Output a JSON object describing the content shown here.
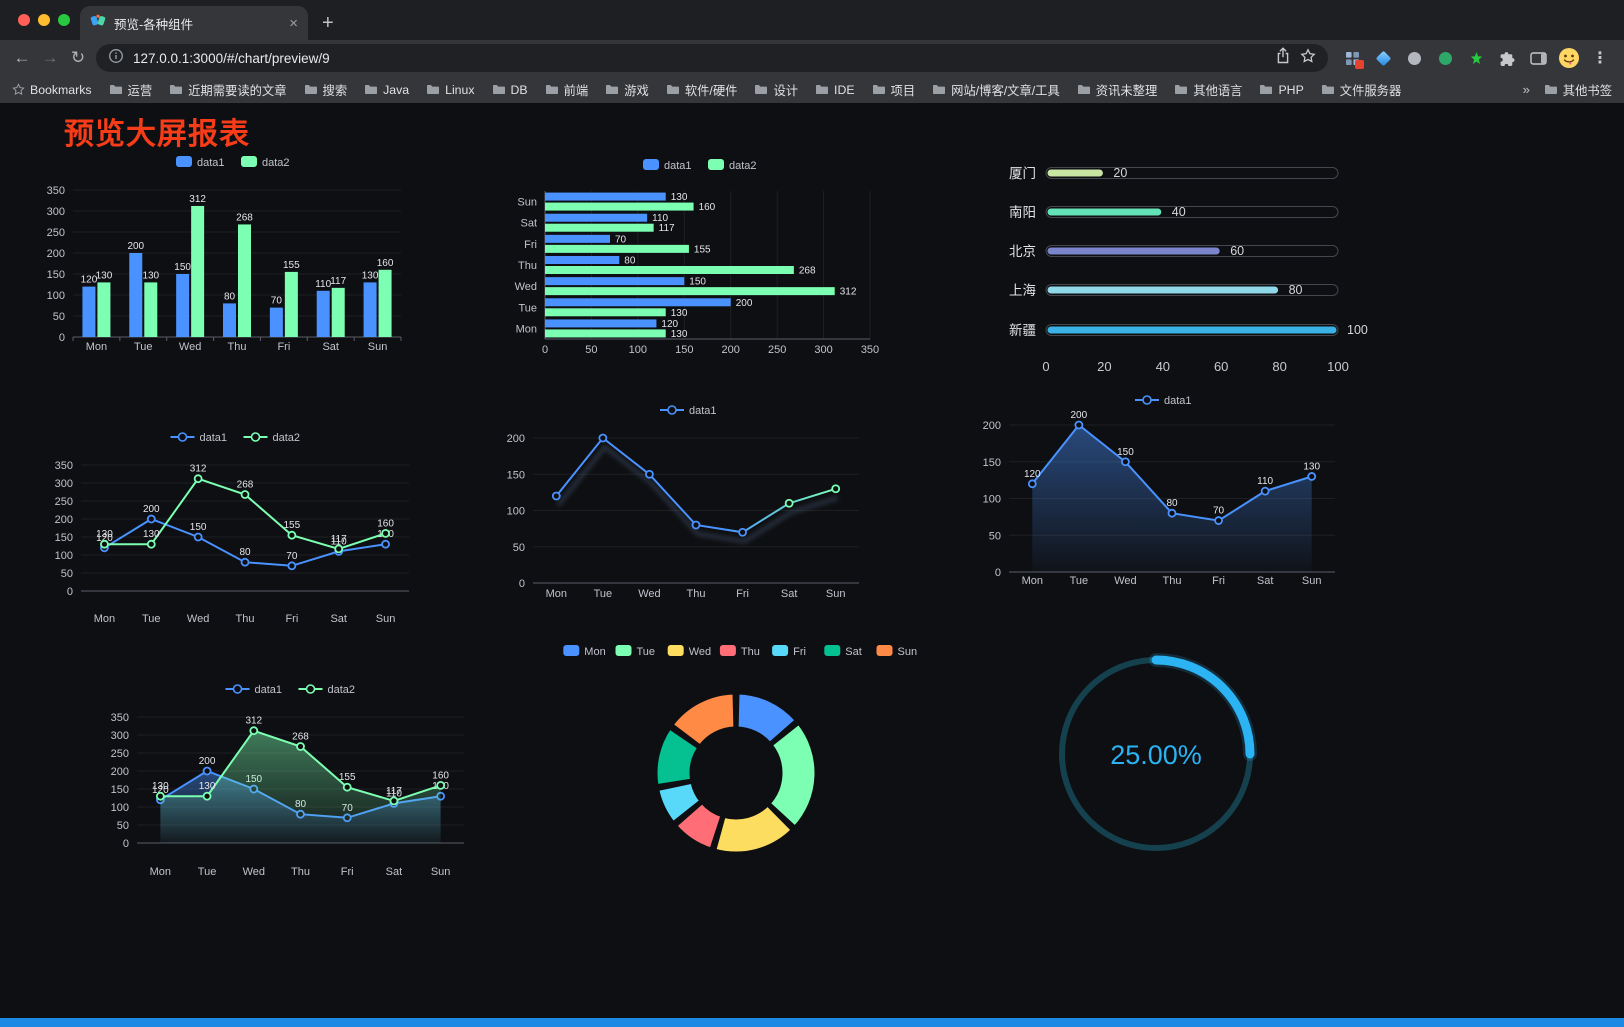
{
  "browser": {
    "tab": {
      "title": "预览-各种组件"
    },
    "icons": {
      "tab_close": "×",
      "new_tab": "+",
      "back": "←",
      "forward": "→",
      "reload": "↻",
      "menu": "⋮",
      "bookmarks_overflow": "»"
    },
    "toolbar": {
      "url": "127.0.0.1:3000/#/chart/preview/9"
    },
    "bookmarks_bar": {
      "root_label": "Bookmarks",
      "folders": [
        "运营",
        "近期需要读的文章",
        "搜索",
        "Java",
        "Linux",
        "DB",
        "前端",
        "游戏",
        "软件/硬件",
        "设计",
        "IDE",
        "项目",
        "网站/博客/文章/工具",
        "资讯未整理",
        "其他语言",
        "PHP",
        "文件服务器"
      ],
      "other_bookmarks": "其他书签"
    }
  },
  "page": {
    "title": "预览大屏报表",
    "title_color": "#f63c18",
    "background": "#0e0f12",
    "bottom_bar_color": "#1e88e5"
  },
  "chart_data": [
    {
      "id": "bar-grouped",
      "type": "bar",
      "categories": [
        "Mon",
        "Tue",
        "Wed",
        "Thu",
        "Fri",
        "Sat",
        "Sun"
      ],
      "series": [
        {
          "name": "data1",
          "color": "#4992ff",
          "values": [
            120,
            200,
            150,
            80,
            70,
            110,
            130
          ]
        },
        {
          "name": "data2",
          "color": "#7cffb2",
          "values": [
            130,
            130,
            312,
            268,
            155,
            117,
            160
          ]
        }
      ],
      "ylim": [
        0,
        350
      ],
      "yticks": [
        0,
        50,
        100,
        150,
        200,
        250,
        300,
        350
      ],
      "show_labels": true,
      "legend_position": "top",
      "grid": true
    },
    {
      "id": "bar-horizontal",
      "type": "bar-horizontal",
      "categories": [
        "Mon",
        "Tue",
        "Wed",
        "Thu",
        "Fri",
        "Sat",
        "Sun"
      ],
      "series": [
        {
          "name": "data1",
          "color": "#4992ff",
          "values": [
            120,
            200,
            150,
            80,
            70,
            110,
            130
          ]
        },
        {
          "name": "data2",
          "color": "#7cffb2",
          "values": [
            130,
            130,
            312,
            268,
            155,
            117,
            160
          ]
        }
      ],
      "xlim": [
        0,
        350
      ],
      "xticks": [
        0,
        50,
        100,
        150,
        200,
        250,
        300,
        350
      ],
      "show_labels": true,
      "legend_position": "top",
      "grid": true
    },
    {
      "id": "city-progress",
      "type": "progress",
      "max": 100,
      "xticks": [
        0,
        20,
        40,
        60,
        80,
        100
      ],
      "rows": [
        {
          "label": "厦门",
          "value": 20,
          "color": "#c8e6a2"
        },
        {
          "label": "南阳",
          "value": 40,
          "color": "#63e2b7"
        },
        {
          "label": "北京",
          "value": 60,
          "color": "#7a85cc"
        },
        {
          "label": "上海",
          "value": 80,
          "color": "#8fd8e8"
        },
        {
          "label": "新疆",
          "value": 100,
          "color": "#3ab2e6"
        }
      ]
    },
    {
      "id": "line-two",
      "type": "line",
      "categories": [
        "Mon",
        "Tue",
        "Wed",
        "Thu",
        "Fri",
        "Sat",
        "Sun"
      ],
      "series": [
        {
          "name": "data1",
          "color": "#4992ff",
          "values": [
            120,
            200,
            150,
            80,
            70,
            110,
            130
          ]
        },
        {
          "name": "data2",
          "color": "#7cffb2",
          "values": [
            130,
            130,
            312,
            268,
            155,
            117,
            160
          ]
        }
      ],
      "ylim": [
        0,
        350
      ],
      "yticks": [
        0,
        50,
        100,
        150,
        200,
        250,
        300,
        350
      ],
      "show_labels": true,
      "legend_position": "top",
      "grid": true
    },
    {
      "id": "line-gradient",
      "type": "line",
      "categories": [
        "Mon",
        "Tue",
        "Wed",
        "Thu",
        "Fri",
        "Sat",
        "Sun"
      ],
      "series": [
        {
          "name": "data1",
          "color": "#4992ff",
          "color_end": "#7cffb2",
          "values": [
            120,
            200,
            150,
            80,
            70,
            110,
            130
          ]
        }
      ],
      "ylim": [
        0,
        200
      ],
      "yticks": [
        0,
        50,
        100,
        150,
        200
      ],
      "show_labels": false,
      "shadow": true,
      "legend_position": "top",
      "grid": true
    },
    {
      "id": "area-single",
      "type": "area",
      "categories": [
        "Mon",
        "Tue",
        "Wed",
        "Thu",
        "Fri",
        "Sat",
        "Sun"
      ],
      "series": [
        {
          "name": "data1",
          "color": "#4992ff",
          "values": [
            120,
            200,
            150,
            80,
            70,
            110,
            130
          ]
        }
      ],
      "ylim": [
        0,
        200
      ],
      "yticks": [
        0,
        50,
        100,
        150,
        200
      ],
      "show_labels": true,
      "legend_position": "top",
      "grid": true
    },
    {
      "id": "area-two",
      "type": "area",
      "categories": [
        "Mon",
        "Tue",
        "Wed",
        "Thu",
        "Fri",
        "Sat",
        "Sun"
      ],
      "series": [
        {
          "name": "data1",
          "color": "#4992ff",
          "values": [
            120,
            200,
            150,
            80,
            70,
            110,
            130
          ]
        },
        {
          "name": "data2",
          "color": "#7cffb2",
          "values": [
            130,
            130,
            312,
            268,
            155,
            117,
            160
          ]
        }
      ],
      "ylim": [
        0,
        350
      ],
      "yticks": [
        0,
        50,
        100,
        150,
        200,
        250,
        300,
        350
      ],
      "show_labels": true,
      "legend_position": "top",
      "grid": true
    },
    {
      "id": "weekday-donut",
      "type": "pie",
      "legend_position": "top",
      "items": [
        {
          "label": "Mon",
          "value": 120,
          "color": "#4992ff"
        },
        {
          "label": "Tue",
          "value": 200,
          "color": "#7cffb2"
        },
        {
          "label": "Wed",
          "value": 150,
          "color": "#fddd60"
        },
        {
          "label": "Thu",
          "value": 80,
          "color": "#ff6e76"
        },
        {
          "label": "Fri",
          "value": 70,
          "color": "#58d9f9"
        },
        {
          "label": "Sat",
          "value": 110,
          "color": "#05c091"
        },
        {
          "label": "Sun",
          "value": 130,
          "color": "#ff8a45"
        }
      ]
    },
    {
      "id": "percent-gauge",
      "type": "gauge",
      "value": 25,
      "display": "25.00%",
      "color": "#2bb3f3",
      "track_color": "#15414f"
    }
  ]
}
